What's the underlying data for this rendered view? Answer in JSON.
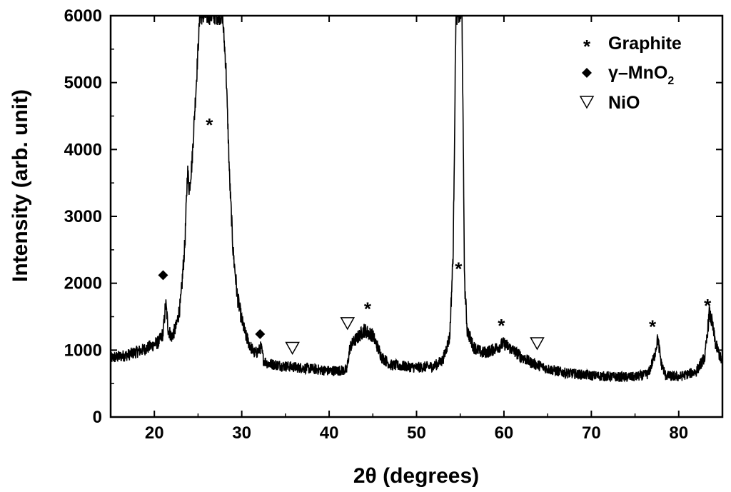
{
  "chart_data": {
    "type": "line",
    "xlabel": "2θ (degrees)",
    "ylabel": "Intensity (arb. unit)",
    "xlim": [
      15,
      85
    ],
    "ylim": [
      0,
      6000
    ],
    "x_ticks": [
      20,
      30,
      40,
      50,
      60,
      70,
      80
    ],
    "y_ticks": [
      0,
      1000,
      2000,
      3000,
      4000,
      5000,
      6000
    ],
    "grid": false,
    "legend_position": "top-right",
    "legend": [
      {
        "marker": "star",
        "label": "Graphite"
      },
      {
        "marker": "diamond",
        "label_main": "γ–MnO",
        "label_sub": "2"
      },
      {
        "marker": "triangle-down",
        "label": "NiO"
      }
    ],
    "series_color": "#000000",
    "profile": [
      [
        15.0,
        880
      ],
      [
        17.0,
        930
      ],
      [
        19.0,
        1020
      ],
      [
        20.5,
        1120
      ],
      [
        21.0,
        1250
      ],
      [
        21.3,
        1700
      ],
      [
        21.6,
        1300
      ],
      [
        22.0,
        1200
      ],
      [
        22.5,
        1350
      ],
      [
        23.0,
        1700
      ],
      [
        23.5,
        2600
      ],
      [
        23.8,
        3700
      ],
      [
        24.0,
        3400
      ],
      [
        24.3,
        3800
      ],
      [
        24.8,
        5000
      ],
      [
        25.2,
        6000
      ],
      [
        27.8,
        6000
      ],
      [
        28.2,
        5200
      ],
      [
        28.6,
        3600
      ],
      [
        29.0,
        2500
      ],
      [
        29.5,
        1800
      ],
      [
        30.0,
        1450
      ],
      [
        30.5,
        1200
      ],
      [
        31.0,
        1050
      ],
      [
        31.5,
        950
      ],
      [
        32.0,
        1000
      ],
      [
        32.2,
        1050
      ],
      [
        32.5,
        850
      ],
      [
        33.0,
        800
      ],
      [
        35.0,
        760
      ],
      [
        38.0,
        720
      ],
      [
        40.0,
        690
      ],
      [
        42.0,
        700
      ],
      [
        42.4,
        1050
      ],
      [
        43.0,
        1150
      ],
      [
        44.0,
        1300
      ],
      [
        45.0,
        1220
      ],
      [
        46.0,
        900
      ],
      [
        47.0,
        780
      ],
      [
        50.0,
        740
      ],
      [
        52.0,
        760
      ],
      [
        53.0,
        850
      ],
      [
        53.8,
        1200
      ],
      [
        54.2,
        2500
      ],
      [
        54.5,
        6000
      ],
      [
        55.2,
        6000
      ],
      [
        55.5,
        2000
      ],
      [
        55.8,
        1300
      ],
      [
        56.5,
        1050
      ],
      [
        57.5,
        960
      ],
      [
        58.5,
        990
      ],
      [
        59.5,
        1060
      ],
      [
        60.0,
        1100
      ],
      [
        61.0,
        1000
      ],
      [
        62.0,
        900
      ],
      [
        63.0,
        820
      ],
      [
        65.0,
        720
      ],
      [
        67.0,
        660
      ],
      [
        70.0,
        620
      ],
      [
        73.0,
        600
      ],
      [
        75.0,
        600
      ],
      [
        76.5,
        640
      ],
      [
        77.2,
        900
      ],
      [
        77.6,
        1180
      ],
      [
        78.0,
        800
      ],
      [
        78.5,
        620
      ],
      [
        80.0,
        600
      ],
      [
        82.0,
        680
      ],
      [
        83.0,
        900
      ],
      [
        83.5,
        1550
      ],
      [
        83.8,
        1420
      ],
      [
        84.2,
        1100
      ],
      [
        85.0,
        800
      ]
    ],
    "annotations": [
      {
        "marker": "star",
        "x": 26.3,
        "y": 4400
      },
      {
        "marker": "star",
        "x": 44.4,
        "y": 1650
      },
      {
        "marker": "star",
        "x": 54.8,
        "y": 2250
      },
      {
        "marker": "star",
        "x": 59.7,
        "y": 1400
      },
      {
        "marker": "star",
        "x": 77.0,
        "y": 1380
      },
      {
        "marker": "star",
        "x": 83.3,
        "y": 1700
      },
      {
        "marker": "diamond",
        "x": 21.0,
        "y": 2120
      },
      {
        "marker": "diamond",
        "x": 32.1,
        "y": 1240
      },
      {
        "marker": "triangle-down",
        "x": 35.8,
        "y": 1030
      },
      {
        "marker": "triangle-down",
        "x": 42.1,
        "y": 1400
      },
      {
        "marker": "triangle-down",
        "x": 63.8,
        "y": 1100
      }
    ]
  }
}
